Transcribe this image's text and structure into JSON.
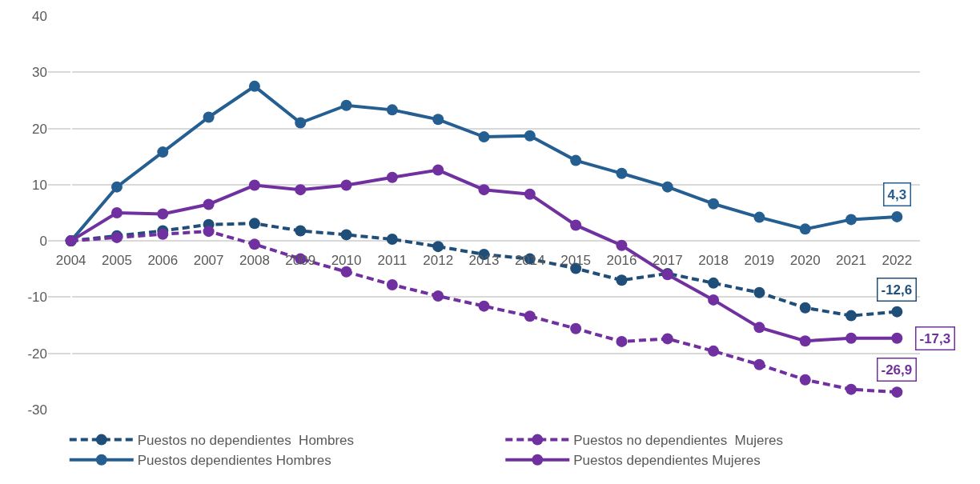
{
  "chart_data": {
    "type": "line",
    "categories": [
      "2004",
      "2005",
      "2006",
      "2007",
      "2008",
      "2009",
      "2010",
      "2011",
      "2012",
      "2013",
      "2014",
      "2015",
      "2016",
      "2017",
      "2018",
      "2019",
      "2020",
      "2021",
      "2022"
    ],
    "series": [
      {
        "name": "Puestos no dependientes  Hombres",
        "color": "#1f4e79",
        "line_style": "dashed",
        "values": [
          0,
          0.9,
          1.8,
          2.9,
          3.1,
          1.8,
          1.1,
          0.3,
          -1.0,
          -2.4,
          -3.2,
          -4.9,
          -7.0,
          -5.8,
          -7.5,
          -9.2,
          -11.9,
          -13.3,
          -12.6
        ],
        "value_labels": [
          null,
          null,
          null,
          null,
          null,
          null,
          null,
          null,
          null,
          null,
          null,
          null,
          null,
          null,
          null,
          null,
          null,
          null,
          "-12,6"
        ]
      },
      {
        "name": "Puestos no dependientes  Mujeres",
        "color": "#7030a0",
        "line_style": "dashed",
        "values": [
          0,
          0.6,
          1.2,
          1.7,
          -0.6,
          -3.2,
          -5.5,
          -7.8,
          -9.8,
          -11.6,
          -13.4,
          -15.6,
          -17.9,
          -17.4,
          -19.6,
          -22.0,
          -24.7,
          -26.4,
          -26.9
        ],
        "value_labels": [
          null,
          null,
          null,
          null,
          null,
          null,
          null,
          null,
          null,
          null,
          null,
          null,
          null,
          null,
          null,
          null,
          null,
          null,
          "-26,9"
        ]
      },
      {
        "name": "Puestos dependientes Hombres",
        "color": "#255e91",
        "line_style": "solid",
        "values": [
          0,
          9.6,
          15.8,
          22.0,
          27.5,
          21.0,
          24.1,
          23.3,
          21.6,
          18.5,
          18.7,
          14.3,
          12.0,
          9.6,
          6.6,
          4.2,
          2.1,
          3.8,
          4.3
        ],
        "value_labels": [
          null,
          null,
          null,
          null,
          null,
          null,
          null,
          null,
          null,
          null,
          null,
          null,
          null,
          null,
          null,
          null,
          null,
          null,
          "4,3"
        ]
      },
      {
        "name": "Puestos dependientes Mujeres",
        "color": "#7030a0",
        "line_style": "solid",
        "values": [
          0,
          5.0,
          4.8,
          6.5,
          9.9,
          9.1,
          9.9,
          11.3,
          12.6,
          9.1,
          8.3,
          2.8,
          -0.8,
          -6.0,
          -10.5,
          -15.4,
          -17.8,
          -17.3,
          -17.3
        ],
        "value_labels": [
          null,
          null,
          null,
          null,
          null,
          null,
          null,
          null,
          null,
          null,
          null,
          null,
          null,
          null,
          null,
          null,
          null,
          null,
          "-17,3"
        ]
      }
    ],
    "ylim": [
      -30,
      40
    ],
    "yticks": [
      -30,
      -20,
      -10,
      0,
      10,
      20,
      30,
      40
    ],
    "grid": "y",
    "legend": "bottom",
    "marker": "circle"
  }
}
